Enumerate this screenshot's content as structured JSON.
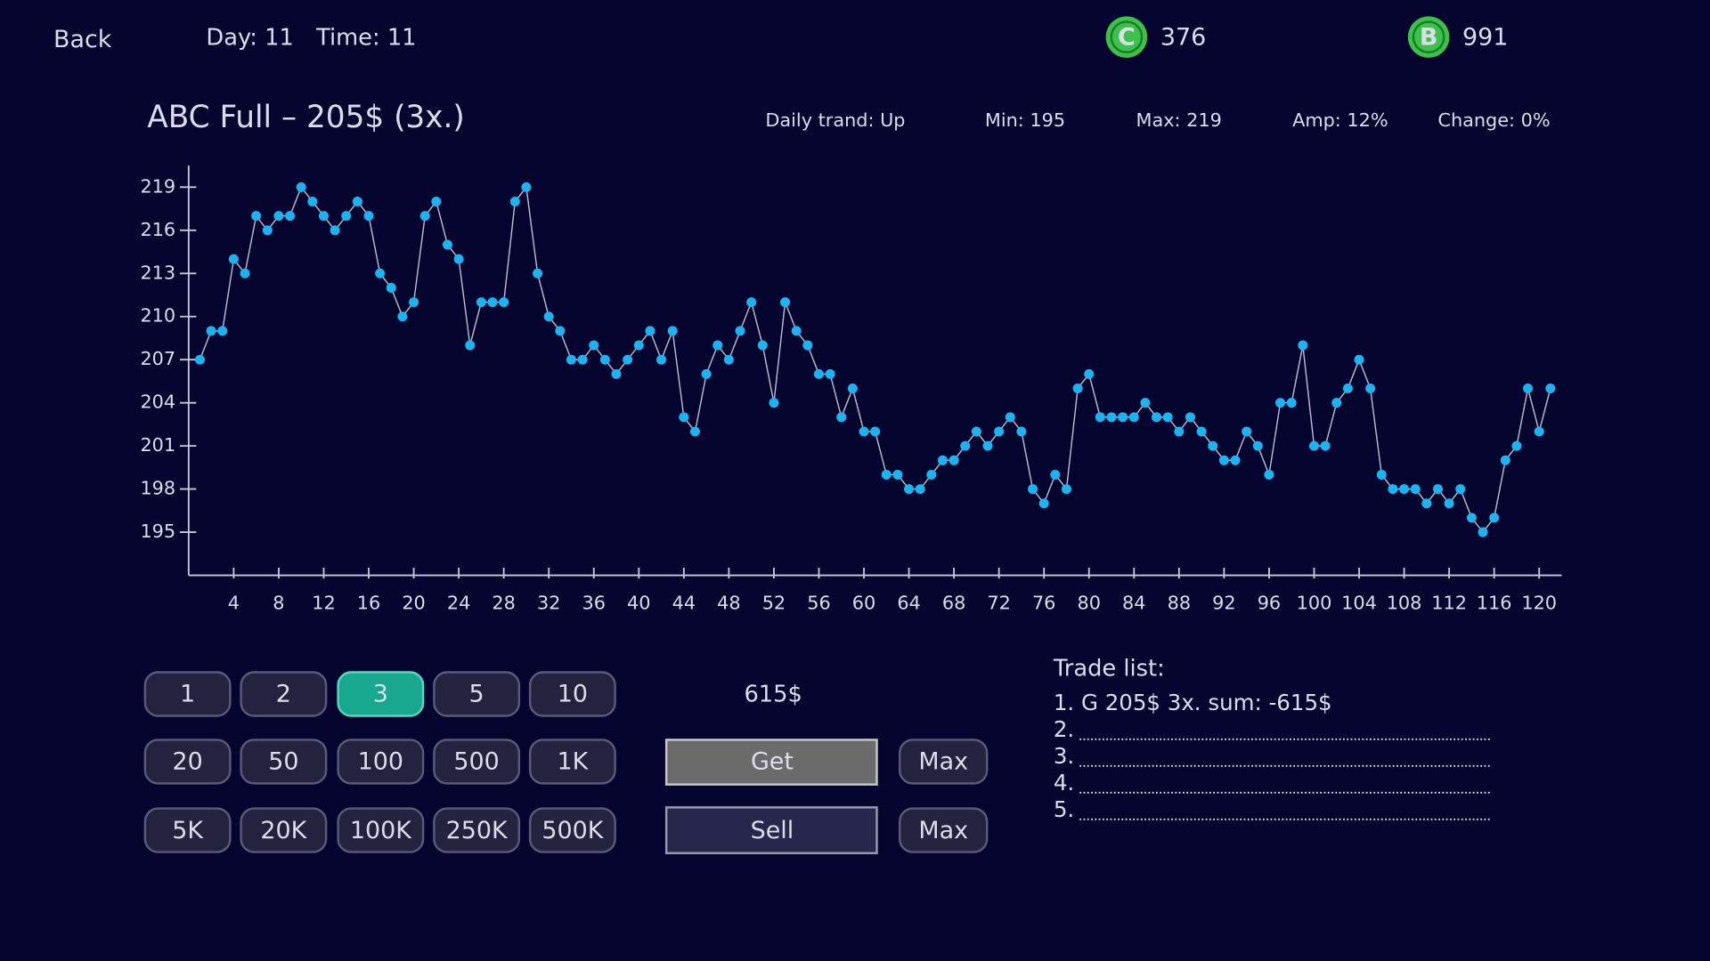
{
  "header": {
    "back": "Back",
    "day": "Day: 11",
    "time": "Time: 11",
    "currencies": [
      {
        "icon": "C",
        "amount": "376"
      },
      {
        "icon": "B",
        "amount": "991"
      }
    ]
  },
  "stock": {
    "title": "ABC Full – 205$ (3x.)",
    "stats": [
      "Daily trand: Up",
      "Min: 195",
      "Max: 219",
      "Amp: 12%",
      "Change: 0%"
    ]
  },
  "chart_data": {
    "type": "line",
    "color": "#1ab4f0",
    "x": [
      1,
      2,
      3,
      4,
      5,
      6,
      7,
      8,
      9,
      10,
      11,
      12,
      13,
      14,
      15,
      16,
      17,
      18,
      19,
      20,
      21,
      22,
      23,
      24,
      25,
      26,
      27,
      28,
      29,
      30,
      31,
      32,
      33,
      34,
      35,
      36,
      37,
      38,
      39,
      40,
      41,
      42,
      43,
      44,
      45,
      46,
      47,
      48,
      49,
      50,
      51,
      52,
      53,
      54,
      55,
      56,
      57,
      58,
      59,
      60,
      61,
      62,
      63,
      64,
      65,
      66,
      67,
      68,
      69,
      70,
      71,
      72,
      73,
      74,
      75,
      76,
      77,
      78,
      79,
      80,
      81,
      82,
      83,
      84,
      85,
      86,
      87,
      88,
      89,
      90,
      91,
      92,
      93,
      94,
      95,
      96,
      97,
      98,
      99,
      100,
      101,
      102,
      103,
      104,
      105,
      106,
      107,
      108,
      109,
      110,
      111,
      112,
      113,
      114,
      115,
      116,
      117,
      118,
      119,
      120,
      121
    ],
    "values": [
      207,
      209,
      209,
      214,
      213,
      217,
      216,
      217,
      217,
      219,
      218,
      217,
      216,
      217,
      218,
      217,
      213,
      212,
      210,
      211,
      217,
      218,
      215,
      214,
      208,
      211,
      211,
      211,
      218,
      219,
      213,
      210,
      209,
      207,
      207,
      208,
      207,
      206,
      207,
      208,
      209,
      207,
      209,
      203,
      202,
      206,
      208,
      207,
      209,
      211,
      208,
      204,
      211,
      209,
      208,
      206,
      206,
      203,
      205,
      202,
      202,
      199,
      199,
      198,
      198,
      199,
      200,
      200,
      201,
      202,
      201,
      202,
      203,
      202,
      198,
      197,
      199,
      198,
      205,
      206,
      203,
      203,
      203,
      203,
      204,
      203,
      203,
      202,
      203,
      202,
      201,
      200,
      200,
      202,
      201,
      199,
      204,
      204,
      208,
      201,
      201,
      204,
      205,
      207,
      205,
      199,
      198,
      198,
      198,
      197,
      198,
      197,
      198,
      196,
      195,
      196,
      200,
      201,
      205,
      202,
      205
    ],
    "xlim": [
      0,
      122
    ],
    "ylim": [
      192,
      220.5
    ],
    "xticks": [
      4,
      8,
      12,
      16,
      20,
      24,
      28,
      32,
      36,
      40,
      44,
      48,
      52,
      56,
      60,
      64,
      68,
      72,
      76,
      80,
      84,
      88,
      92,
      96,
      100,
      104,
      108,
      112,
      116,
      120
    ],
    "yticks": [
      195,
      198,
      201,
      204,
      207,
      210,
      213,
      216,
      219
    ]
  },
  "amount_buttons": [
    "1",
    "2",
    "3",
    "5",
    "10",
    "20",
    "50",
    "100",
    "500",
    "1K",
    "5K",
    "20K",
    "100K",
    "250K",
    "500K"
  ],
  "selected_amount_index": 2,
  "trade": {
    "total": "615$",
    "get": "Get",
    "sell": "Sell",
    "max_buttons": [
      "Max",
      "Max"
    ]
  },
  "trade_list": {
    "title": "Trade list:",
    "entries": [
      "1. G 205$ 3x. sum: -615$",
      "2.",
      "3.",
      "4.",
      "5."
    ]
  }
}
